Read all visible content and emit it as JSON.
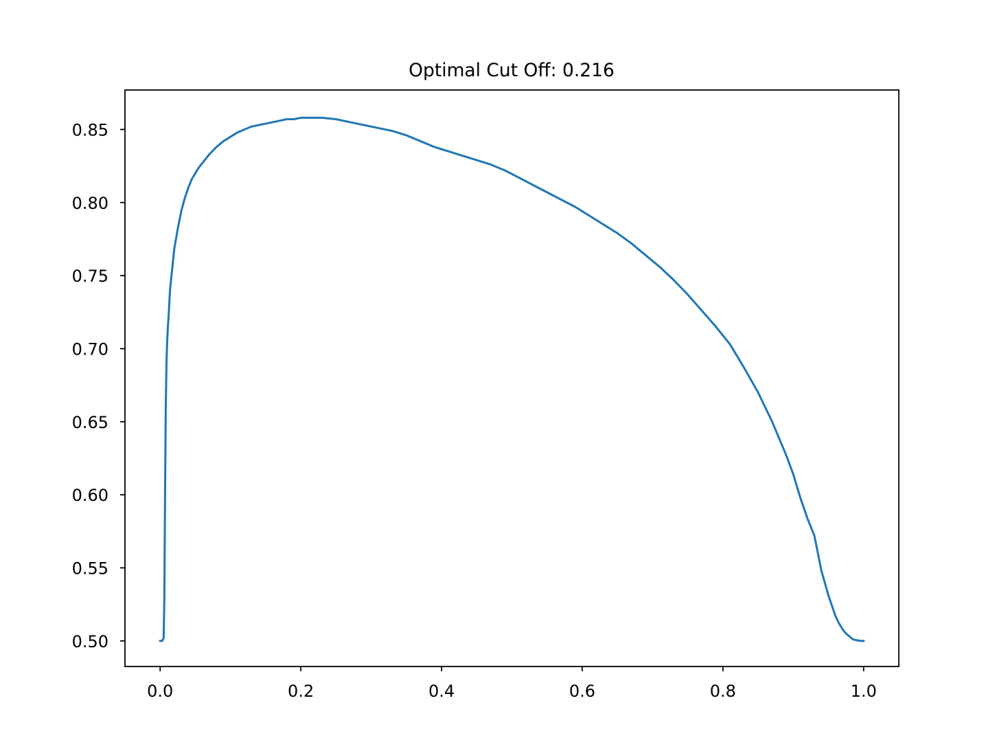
{
  "chart_data": {
    "type": "line",
    "title": "Optimal Cut Off: 0.216",
    "xlabel": "",
    "ylabel": "",
    "xlim": [
      -0.05,
      1.05
    ],
    "ylim": [
      0.4825,
      0.877
    ],
    "grid": false,
    "x_ticks": [
      0.0,
      0.2,
      0.4,
      0.6,
      0.8,
      1.0
    ],
    "x_tick_labels": [
      "0.0",
      "0.2",
      "0.4",
      "0.6",
      "0.8",
      "1.0"
    ],
    "y_ticks": [
      0.5,
      0.55,
      0.6,
      0.65,
      0.7,
      0.75,
      0.8,
      0.85
    ],
    "y_tick_labels": [
      "0.50",
      "0.55",
      "0.60",
      "0.65",
      "0.70",
      "0.75",
      "0.80",
      "0.85"
    ],
    "line_color": "#1f77b4",
    "series": [
      {
        "x": [
          0.0,
          0.003,
          0.005,
          0.006,
          0.007,
          0.008,
          0.009,
          0.01,
          0.011,
          0.012,
          0.014,
          0.017,
          0.02,
          0.025,
          0.03,
          0.035,
          0.04,
          0.045,
          0.05,
          0.055,
          0.06,
          0.065,
          0.07,
          0.08,
          0.09,
          0.1,
          0.11,
          0.12,
          0.13,
          0.14,
          0.15,
          0.16,
          0.17,
          0.18,
          0.19,
          0.2,
          0.21,
          0.216,
          0.23,
          0.25,
          0.27,
          0.29,
          0.31,
          0.33,
          0.35,
          0.37,
          0.39,
          0.41,
          0.43,
          0.45,
          0.47,
          0.49,
          0.51,
          0.53,
          0.55,
          0.57,
          0.59,
          0.61,
          0.63,
          0.65,
          0.67,
          0.69,
          0.71,
          0.73,
          0.75,
          0.77,
          0.79,
          0.81,
          0.83,
          0.85,
          0.87,
          0.89,
          0.9,
          0.91,
          0.92,
          0.93,
          0.94,
          0.95,
          0.955,
          0.96,
          0.965,
          0.97,
          0.975,
          0.98,
          0.985,
          0.99,
          0.995,
          1.0
        ],
        "y": [
          0.5,
          0.5,
          0.502,
          0.53,
          0.6,
          0.66,
          0.69,
          0.705,
          0.715,
          0.722,
          0.74,
          0.754,
          0.768,
          0.782,
          0.794,
          0.803,
          0.81,
          0.816,
          0.82,
          0.824,
          0.827,
          0.83,
          0.833,
          0.838,
          0.842,
          0.845,
          0.848,
          0.85,
          0.852,
          0.853,
          0.854,
          0.855,
          0.856,
          0.857,
          0.857,
          0.858,
          0.858,
          0.858,
          0.858,
          0.857,
          0.855,
          0.853,
          0.851,
          0.849,
          0.846,
          0.842,
          0.838,
          0.835,
          0.832,
          0.829,
          0.826,
          0.822,
          0.817,
          0.812,
          0.807,
          0.802,
          0.797,
          0.791,
          0.785,
          0.779,
          0.772,
          0.764,
          0.756,
          0.747,
          0.737,
          0.726,
          0.715,
          0.703,
          0.687,
          0.67,
          0.65,
          0.627,
          0.614,
          0.598,
          0.584,
          0.572,
          0.548,
          0.531,
          0.524,
          0.517,
          0.512,
          0.508,
          0.505,
          0.503,
          0.501,
          0.5005,
          0.5,
          0.5
        ]
      }
    ]
  }
}
